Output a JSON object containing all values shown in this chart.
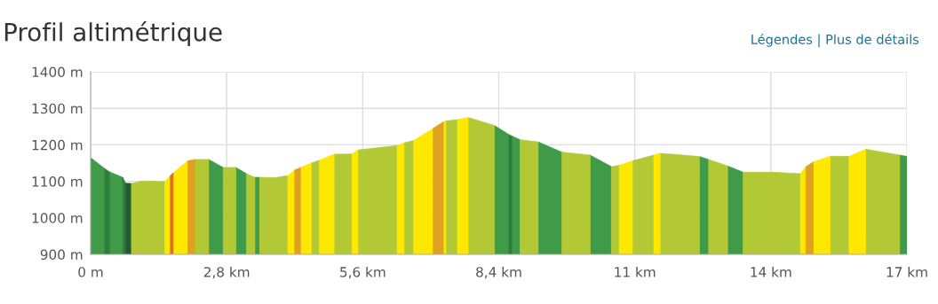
{
  "chart_data": {
    "type": "area",
    "title": "Profil altimétrique",
    "annotations": [
      "Légendes | Plus de détails"
    ],
    "series": [
      {
        "color": "#3f9b47",
        "x": [
          0,
          0.29,
          null,
          0.39,
          0.66,
          null,
          2.43,
          2.73,
          null,
          2.99,
          3.21,
          null,
          3.38,
          3.48,
          null,
          8.31,
          8.61,
          null,
          8.67,
          8.84,
          null,
          9.21,
          9.7,
          null,
          10.28,
          10.72,
          null,
          12.53,
          12.72,
          null,
          13.11,
          13.43,
          null,
          16.65,
          16.8
        ],
        "values": [
          1165,
          1135,
          null,
          1126,
          1111,
          null,
          1160,
          1138,
          null,
          1138,
          1121,
          null,
          1111,
          1111,
          null,
          1253,
          1228,
          null,
          1224,
          1214,
          null,
          1208,
          1180,
          null,
          1172,
          1140,
          null,
          1168,
          1160,
          null,
          1142,
          1125,
          null,
          1172,
          1168
        ]
      },
      {
        "color": "#2e7d3c",
        "x": [
          0.29,
          0.39,
          null,
          0.66,
          0.72,
          null,
          8.61,
          8.67
        ],
        "values": [
          1135,
          1126,
          null,
          1111,
          1095,
          null,
          1228,
          1224
        ]
      },
      {
        "color": "#235b30",
        "x": [
          0.72,
          0.84
        ],
        "values": [
          1095,
          1094
        ]
      },
      {
        "color": "#b3c835",
        "x": [
          0.84,
          1.06,
          1.33,
          1.53,
          null,
          2.15,
          2.43,
          null,
          2.73,
          2.99,
          null,
          3.21,
          3.38,
          null,
          3.48,
          3.8,
          4.06,
          null,
          4.54,
          4.71,
          null,
          5.01,
          5.38,
          null,
          5.5,
          6.31,
          null,
          6.45,
          6.65,
          null,
          7.31,
          7.55,
          null,
          7.77,
          8.31,
          null,
          8.84,
          9.21,
          null,
          9.7,
          10.28,
          null,
          10.72,
          10.88,
          null,
          11.15,
          11.59,
          null,
          11.72,
          12.53,
          null,
          12.72,
          13.11,
          null,
          13.43,
          14.04,
          14.61,
          null,
          15.22,
          15.61,
          null,
          15.95,
          16.65
        ],
        "values": [
          1094,
          1101,
          1100,
          1099,
          null,
          1160,
          1160,
          null,
          1138,
          1138,
          null,
          1121,
          1111,
          null,
          1111,
          1110,
          1116,
          null,
          1150,
          1158,
          null,
          1174,
          1175,
          null,
          1186,
          1198,
          null,
          1205,
          1212,
          null,
          1265,
          1269,
          null,
          1275,
          1253,
          null,
          1214,
          1208,
          null,
          1180,
          1172,
          null,
          1140,
          1144,
          null,
          1156,
          1172,
          null,
          1177,
          1168,
          null,
          1160,
          1142,
          null,
          1125,
          1125,
          1121,
          null,
          1169,
          1168,
          null,
          1188,
          1172
        ]
      },
      {
        "color": "#ffe800",
        "x": [
          1.53,
          1.64,
          null,
          1.7,
          2.0,
          null,
          4.06,
          4.2,
          null,
          4.32,
          4.54,
          null,
          4.71,
          5.01,
          null,
          5.38,
          5.5,
          null,
          6.31,
          6.45,
          null,
          6.65,
          7.05,
          null,
          7.26,
          7.31,
          null,
          7.55,
          7.77,
          null,
          10.88,
          11.15,
          null,
          11.59,
          11.72,
          null,
          14.61,
          14.72,
          null,
          14.87,
          15.22,
          null,
          15.61,
          15.95
        ],
        "values": [
          1099,
          1116,
          null,
          1123,
          1156,
          null,
          1116,
          1131,
          null,
          1138,
          1150,
          null,
          1158,
          1174,
          null,
          1175,
          1186,
          null,
          1198,
          1205,
          null,
          1212,
          1245,
          null,
          1263,
          1265,
          null,
          1269,
          1275,
          null,
          1144,
          1156,
          null,
          1172,
          1177,
          null,
          1121,
          1140,
          null,
          1153,
          1169,
          null,
          1168,
          1188
        ]
      },
      {
        "color": "#e0a020",
        "x": [
          2.0,
          2.15,
          null,
          4.2,
          4.32,
          null,
          7.05,
          7.26,
          null,
          14.72,
          14.87
        ],
        "values": [
          1156,
          1160,
          null,
          1131,
          1138,
          null,
          1245,
          1263,
          null,
          1140,
          1153
        ]
      },
      {
        "color": "#d9751e",
        "x": [
          1.64,
          1.7
        ],
        "values": [
          1116,
          1123
        ]
      }
    ],
    "xlim": [
      0,
      16.8
    ],
    "xticks": [
      {
        "value": 0,
        "label": "0 m"
      },
      {
        "value": 2.8,
        "label": "2,8 km"
      },
      {
        "value": 5.6,
        "label": "5,6 km"
      },
      {
        "value": 8.4,
        "label": "8,4 km"
      },
      {
        "value": 11.2,
        "label": "11 km"
      },
      {
        "value": 14,
        "label": "14 km"
      },
      {
        "value": 16.8,
        "label": "17 km"
      }
    ],
    "ylim": [
      900,
      1400
    ],
    "yticks": [
      {
        "value": 900,
        "label": "900 m"
      },
      {
        "value": 1000,
        "label": "1000 m"
      },
      {
        "value": 1100,
        "label": "1100 m"
      },
      {
        "value": 1200,
        "label": "1200 m"
      },
      {
        "value": 1300,
        "label": "1300 m"
      },
      {
        "value": 1400,
        "label": "1400 m"
      }
    ],
    "grid": true
  }
}
